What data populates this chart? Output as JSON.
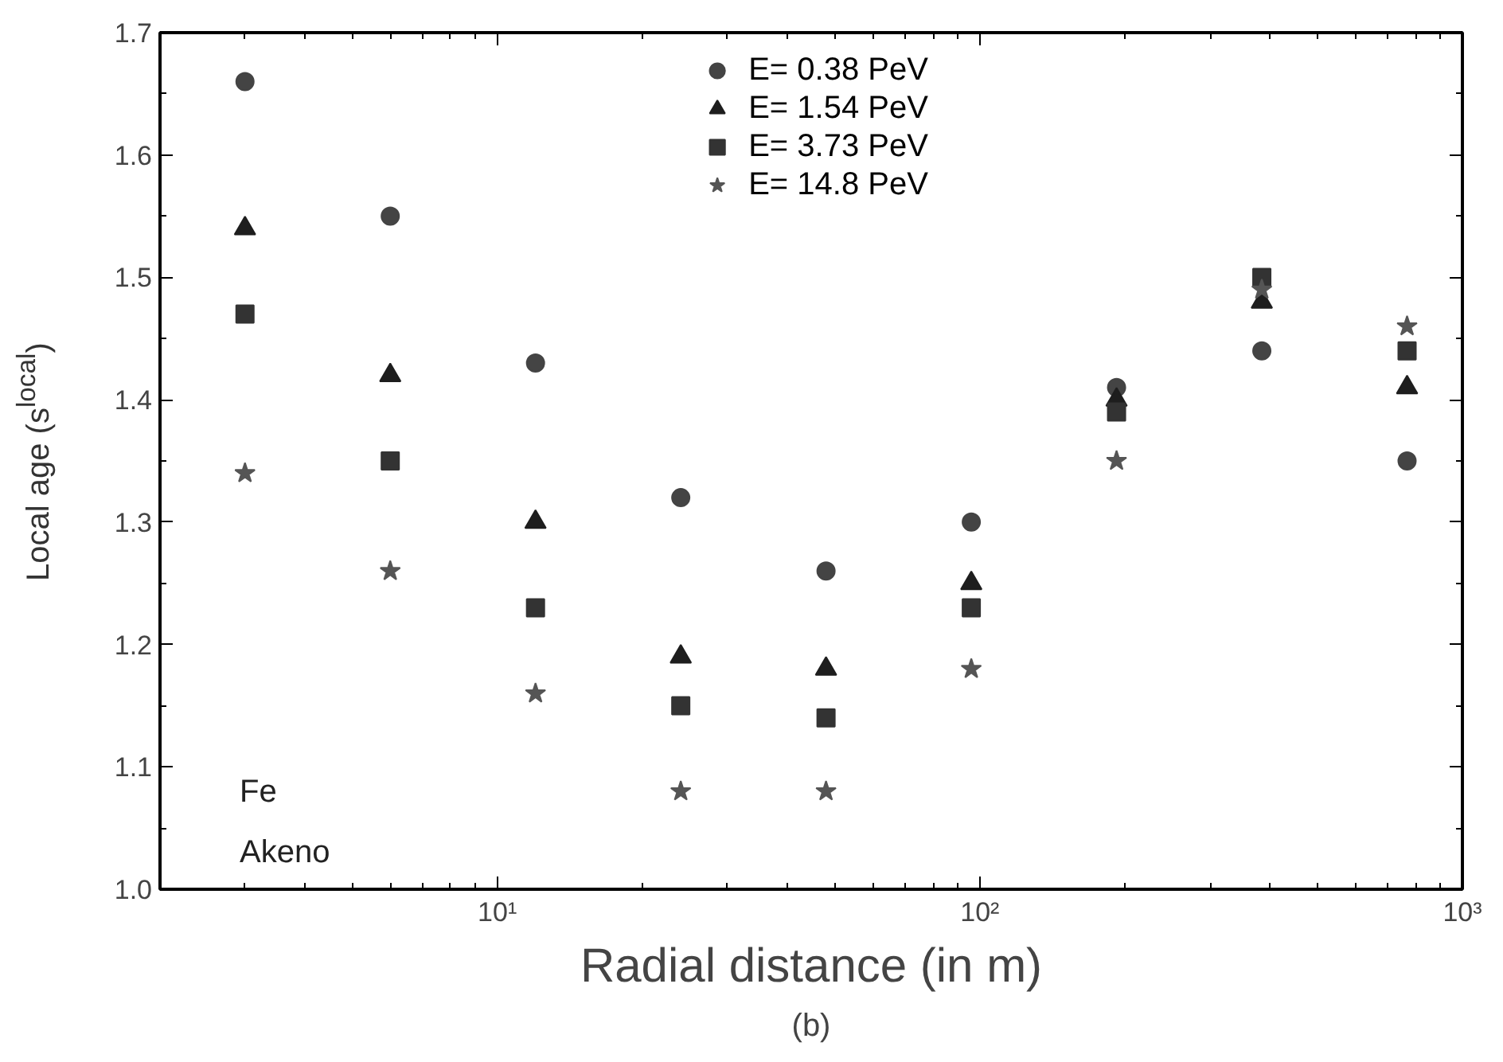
{
  "chart_data": {
    "type": "scatter",
    "xlabel": "Radial distance (in m)",
    "ylabel": "Local age (s$^{local}$)",
    "x": [
      3,
      6,
      12,
      24,
      48,
      96,
      192,
      384,
      768
    ],
    "series": [
      {
        "name": "E= 0.38 PeV",
        "color": "#444444",
        "marker": "circle",
        "values": [
          1.66,
          1.55,
          1.43,
          1.32,
          1.26,
          1.3,
          1.41,
          1.44,
          1.35
        ]
      },
      {
        "name": "E= 1.54 PeV",
        "color": "#1e1e1e",
        "marker": "triangle",
        "values": [
          1.54,
          1.42,
          1.3,
          1.19,
          1.18,
          1.25,
          1.4,
          1.48,
          1.41
        ]
      },
      {
        "name": "E= 3.73 PeV",
        "color": "#333333",
        "marker": "square",
        "values": [
          1.47,
          1.35,
          1.23,
          1.15,
          1.14,
          1.23,
          1.39,
          1.5,
          1.44
        ]
      },
      {
        "name": "E= 14.8 PeV",
        "color": "#555555",
        "marker": "star",
        "values": [
          1.34,
          1.26,
          1.16,
          1.08,
          1.08,
          1.18,
          1.35,
          1.49,
          1.46
        ]
      }
    ],
    "log": "x",
    "xlim": [
      2,
      1000
    ],
    "xticks": [
      {
        "value": 10,
        "label": "10¹"
      },
      {
        "value": 100,
        "label": "10²"
      },
      {
        "value": 1000,
        "label": "10³"
      }
    ],
    "ylim": [
      1.0,
      1.7
    ],
    "yticks": [
      {
        "value": 1.0,
        "label": "1.0"
      },
      1.1,
      1.2,
      1.3,
      1.4,
      1.5,
      1.6,
      1.7
    ],
    "grid": false,
    "legend": "top",
    "annotations": [
      "Fe",
      "Akeno",
      "(b)"
    ]
  }
}
